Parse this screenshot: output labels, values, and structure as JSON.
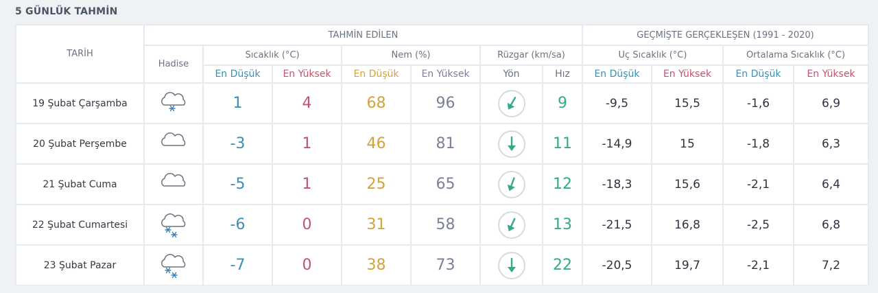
{
  "section_title": "5 GÜNLÜK TAHMİN",
  "headers": {
    "date": "TARİH",
    "forecast": "TAHMİN EDİLEN",
    "past": "GEÇMİŞTE GERÇEKLEŞEN (1991 - 2020)",
    "event": "Hadise",
    "temp": "Sıcaklık (°C)",
    "humidity": "Nem (%)",
    "wind": "Rüzgar (km/sa)",
    "extreme": "Uç Sıcaklık (°C)",
    "average": "Ortalama Sıcaklık (°C)",
    "min": "En Düşük",
    "max": "En Yüksek",
    "dir": "Yön",
    "speed": "Hız"
  },
  "rows": [
    {
      "date": "19 Şubat Çarşamba",
      "icon": "cloud-snow-light-icon",
      "tmin": "1",
      "tmax": "4",
      "hmin": "68",
      "hmax": "96",
      "wind_dir_deg": 210,
      "wind_speed": "9",
      "ext_min": "-9,5",
      "ext_max": "15,5",
      "avg_min": "-1,6",
      "avg_max": "6,9"
    },
    {
      "date": "20 Şubat Perşembe",
      "icon": "cloudy-icon",
      "tmin": "-3",
      "tmax": "1",
      "hmin": "46",
      "hmax": "81",
      "wind_dir_deg": 180,
      "wind_speed": "11",
      "ext_min": "-14,9",
      "ext_max": "15",
      "avg_min": "-1,8",
      "avg_max": "6,3"
    },
    {
      "date": "21 Şubat Cuma",
      "icon": "cloudy-icon",
      "tmin": "-5",
      "tmax": "1",
      "hmin": "25",
      "hmax": "65",
      "wind_dir_deg": 200,
      "wind_speed": "12",
      "ext_min": "-18,3",
      "ext_max": "15,6",
      "avg_min": "-2,1",
      "avg_max": "6,4"
    },
    {
      "date": "22 Şubat Cumartesi",
      "icon": "cloud-snow-icon",
      "tmin": "-6",
      "tmax": "0",
      "hmin": "31",
      "hmax": "58",
      "wind_dir_deg": 205,
      "wind_speed": "13",
      "ext_min": "-21,5",
      "ext_max": "16,8",
      "avg_min": "-2,5",
      "avg_max": "6,8"
    },
    {
      "date": "23 Şubat Pazar",
      "icon": "cloud-snow-icon",
      "tmin": "-7",
      "tmax": "0",
      "hmin": "38",
      "hmax": "73",
      "wind_dir_deg": 180,
      "wind_speed": "22",
      "ext_min": "-20,5",
      "ext_max": "19,7",
      "avg_min": "-2,1",
      "avg_max": "7,2"
    }
  ]
}
